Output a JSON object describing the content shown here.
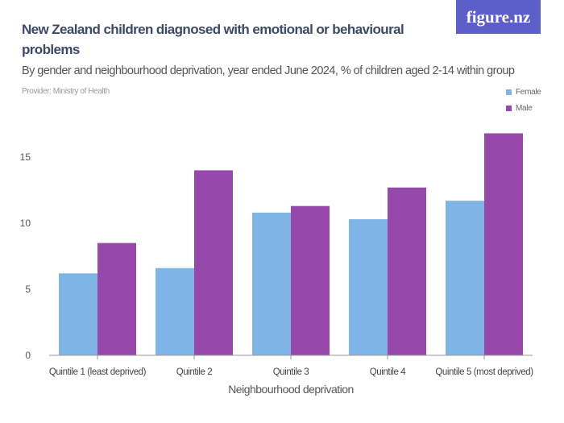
{
  "logo": "figure.nz",
  "provider": "Provider: Ministry of Health",
  "chart_data": {
    "type": "bar",
    "title": "New Zealand children diagnosed with emotional or behavioural problems",
    "subtitle": "By gender and neighbourhood deprivation, year ended June 2024, % of children aged 2-14 within group",
    "xlabel": "Neighbourhood deprivation",
    "ylabel": "",
    "categories": [
      "Quintile 1 (least deprived)",
      "Quintile 2",
      "Quintile 3",
      "Quintile 4",
      "Quintile 5 (most deprived)"
    ],
    "series": [
      {
        "name": "Female",
        "color": "#7fb5e6",
        "values": [
          6.2,
          6.6,
          10.8,
          10.3,
          11.7
        ]
      },
      {
        "name": "Male",
        "color": "#9649ab",
        "values": [
          8.5,
          14.0,
          11.3,
          12.7,
          16.8
        ]
      }
    ],
    "yticks": [
      "0",
      "5",
      "10",
      "15"
    ],
    "ylim": [
      0,
      17
    ],
    "legend": "top-right",
    "grid": false
  }
}
